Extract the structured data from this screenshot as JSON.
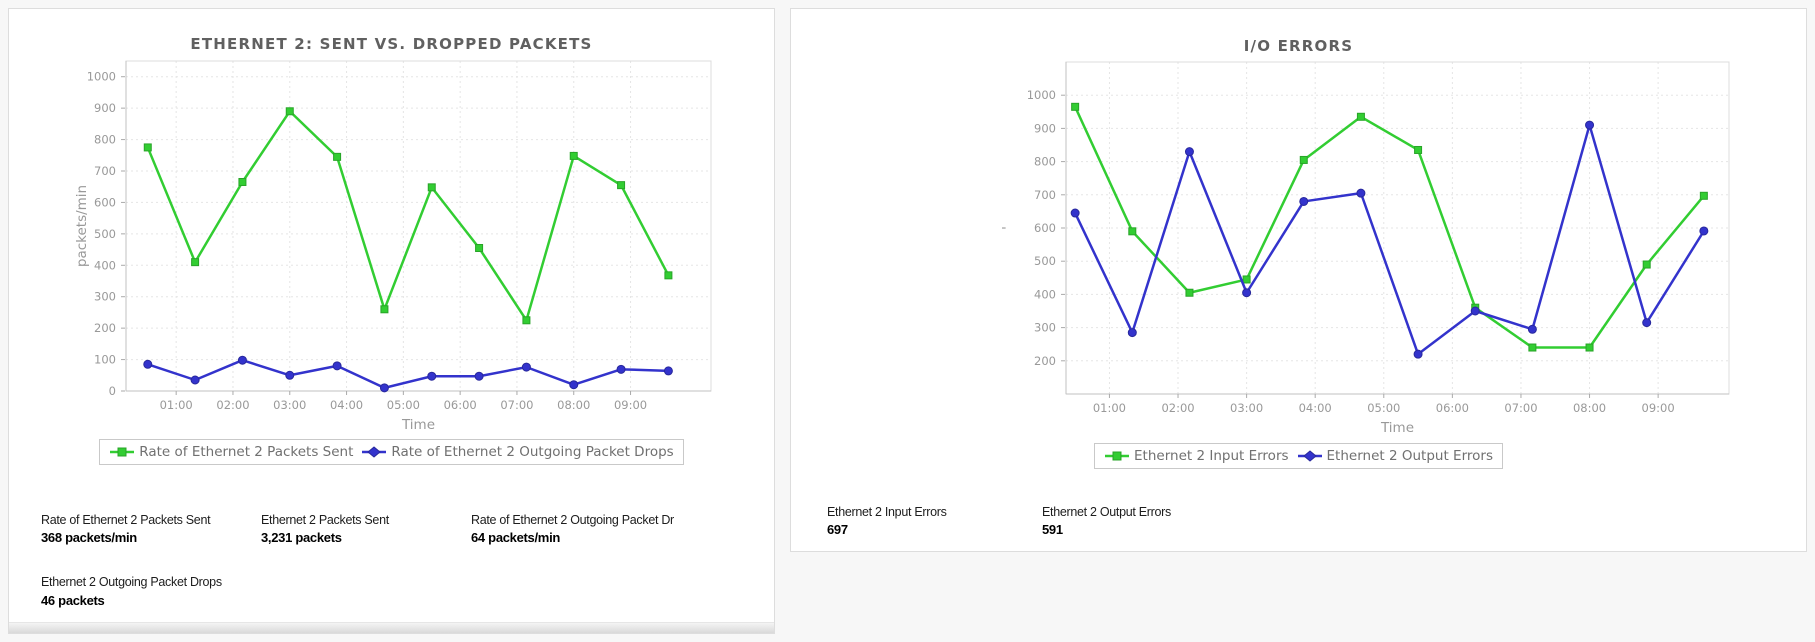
{
  "page": {
    "background": "#f7f7f7",
    "accent_green": "#32cd32",
    "accent_blue": "#3333cc"
  },
  "chart_data": [
    {
      "type": "line",
      "title": "ETHERNET 2: SENT VS. DROPPED PACKETS",
      "xlabel": "Time",
      "ylabel": "packets/min",
      "ylim": [
        0,
        1050
      ],
      "yticks": [
        0,
        100,
        200,
        300,
        400,
        500,
        600,
        700,
        800,
        900,
        1000
      ],
      "xlim": [
        7,
        625
      ],
      "xtick_minutes": [
        60,
        120,
        180,
        240,
        300,
        360,
        420,
        480,
        540
      ],
      "xtick_labels": [
        "01:00",
        "02:00",
        "03:00",
        "04:00",
        "05:00",
        "06:00",
        "07:00",
        "08:00",
        "09:00"
      ],
      "x_minutes": [
        30,
        80,
        130,
        180,
        230,
        280,
        330,
        380,
        430,
        480,
        530,
        580
      ],
      "x_times": [
        "00:30",
        "01:20",
        "02:10",
        "03:00",
        "03:50",
        "04:40",
        "05:30",
        "06:20",
        "07:10",
        "08:00",
        "08:50",
        "09:40"
      ],
      "grid": true,
      "legend_position": "bottom",
      "series": [
        {
          "name": "Rate of Ethernet 2 Packets Sent",
          "color": "#32cd32",
          "edge": "#28a428",
          "marker": "square",
          "values": [
            775,
            410,
            665,
            890,
            745,
            260,
            648,
            455,
            225,
            748,
            655,
            368
          ]
        },
        {
          "name": "Rate of Ethernet 2 Outgoing Packet Drops",
          "color": "#3333cc",
          "edge": "#28289c",
          "marker": "circle",
          "values": [
            85,
            35,
            98,
            50,
            80,
            10,
            47,
            47,
            76,
            20,
            69,
            64
          ]
        }
      ]
    },
    {
      "type": "line",
      "title": "I/O ERRORS",
      "xlabel": "Time",
      "ylabel": "'",
      "ylim": [
        100,
        1100
      ],
      "yticks": [
        200,
        300,
        400,
        500,
        600,
        700,
        800,
        900,
        1000
      ],
      "xlim": [
        22,
        602
      ],
      "xtick_minutes": [
        60,
        120,
        180,
        240,
        300,
        360,
        420,
        480,
        540
      ],
      "xtick_labels": [
        "01:00",
        "02:00",
        "03:00",
        "04:00",
        "05:00",
        "06:00",
        "07:00",
        "08:00",
        "09:00"
      ],
      "x_minutes": [
        30,
        80,
        130,
        180,
        230,
        280,
        330,
        380,
        430,
        480,
        530,
        580
      ],
      "x_times": [
        "00:30",
        "01:20",
        "02:10",
        "03:00",
        "03:50",
        "04:40",
        "05:30",
        "06:20",
        "07:10",
        "08:00",
        "08:50",
        "09:40"
      ],
      "grid": true,
      "legend_position": "bottom",
      "series": [
        {
          "name": "Ethernet 2 Input Errors",
          "color": "#32cd32",
          "edge": "#28a428",
          "marker": "square",
          "values": [
            965,
            590,
            405,
            445,
            805,
            935,
            835,
            360,
            240,
            240,
            490,
            697
          ]
        },
        {
          "name": "Ethernet 2 Output Errors",
          "color": "#3333cc",
          "edge": "#28289c",
          "marker": "circle",
          "values": [
            645,
            285,
            830,
            405,
            680,
            705,
            220,
            350,
            295,
            910,
            315,
            591
          ]
        }
      ]
    }
  ],
  "panels": [
    {
      "stats": [
        {
          "label": "Rate of Ethernet 2 Packets Sent",
          "value": "368 packets/min"
        },
        {
          "label": "Ethernet 2 Packets Sent",
          "value": "3,231 packets"
        },
        {
          "label": "Rate of Ethernet 2 Outgoing Packet Dr",
          "value": "64 packets/min"
        },
        {
          "label": "Ethernet 2 Outgoing Packet Drops",
          "value": "46 packets"
        }
      ]
    },
    {
      "stats": [
        {
          "label": "Ethernet 2 Input Errors",
          "value": "697"
        },
        {
          "label": "Ethernet 2 Output Errors",
          "value": "591"
        }
      ]
    }
  ]
}
